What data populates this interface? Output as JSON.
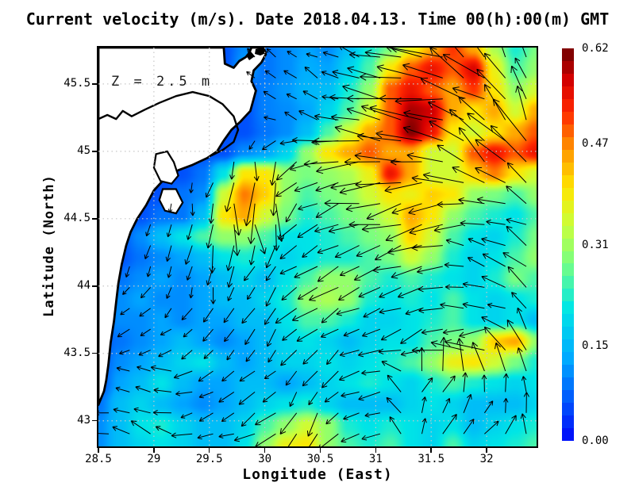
{
  "title": "Current velocity (m/s). Date 2018.04.13. Time 00(h):00(m) GMT",
  "annotation": "Z = 2.5 m",
  "axes": {
    "xlabel": "Longitude (East)",
    "ylabel": "Latitude (North)",
    "x_range": [
      28.5,
      32.45
    ],
    "y_range": [
      42.81,
      45.77
    ],
    "x_ticks": [
      "28.5",
      "29",
      "29.5",
      "30",
      "30.5",
      "31",
      "31.5",
      "32"
    ],
    "x_tick_values": [
      28.5,
      29,
      29.5,
      30,
      30.5,
      31,
      31.5,
      32
    ],
    "y_ticks": [
      "45.5",
      "45",
      "44.5",
      "44",
      "43.5",
      "43"
    ],
    "y_tick_values": [
      45.5,
      45,
      44.5,
      44,
      43.5,
      43
    ],
    "grid_on": true
  },
  "colorbar": {
    "min": 0.0,
    "max": 0.62,
    "steps": 31,
    "tick_labels": [
      "0.62",
      "0.47",
      "0.31",
      "0.15",
      "0.00"
    ],
    "tick_values": [
      0.62,
      0.47,
      0.31,
      0.15,
      0.0
    ]
  },
  "colors": {
    "background": "#ffffff",
    "coast_line": "#000000",
    "land_fill": "#ffffff",
    "gridline": "#c8c8c8",
    "arrow": "#000000",
    "jet_stops": [
      [
        0.0,
        0,
        20,
        250
      ],
      [
        0.2,
        0,
        170,
        255
      ],
      [
        0.33,
        0,
        230,
        230
      ],
      [
        0.45,
        120,
        255,
        130
      ],
      [
        0.55,
        200,
        255,
        60
      ],
      [
        0.65,
        255,
        230,
        0
      ],
      [
        0.75,
        255,
        150,
        0
      ],
      [
        0.85,
        255,
        40,
        0
      ],
      [
        0.93,
        215,
        0,
        0
      ],
      [
        1.0,
        130,
        0,
        0
      ]
    ]
  },
  "chart_data": {
    "type": "heatmap",
    "quantity": "current speed (m/s)",
    "depth_m": 2.5,
    "date": "2018.04.13",
    "time_gmt": "00:00",
    "lon_range": [
      28.5,
      32.45
    ],
    "lat_range": [
      42.81,
      45.77
    ],
    "speed_range": [
      0.0,
      0.62
    ],
    "grid_cols": 22,
    "grid_rows": 20,
    "speed": [
      [
        0.05,
        0.05,
        0.05,
        0.05,
        0.05,
        0.05,
        0.05,
        0.1,
        0.08,
        0.1,
        0.12,
        0.1,
        0.15,
        0.22,
        0.28,
        0.38,
        0.45,
        0.52,
        0.45,
        0.32,
        0.22,
        0.28
      ],
      [
        0.05,
        0.05,
        0.05,
        0.05,
        0.05,
        0.05,
        0.05,
        0.12,
        0.08,
        0.1,
        0.13,
        0.12,
        0.18,
        0.25,
        0.4,
        0.5,
        0.55,
        0.5,
        0.57,
        0.38,
        0.25,
        0.3
      ],
      [
        0.05,
        0.05,
        0.05,
        0.05,
        0.05,
        0.05,
        0.05,
        0.05,
        0.09,
        0.11,
        0.14,
        0.15,
        0.22,
        0.3,
        0.5,
        0.55,
        0.5,
        0.45,
        0.52,
        0.4,
        0.3,
        0.35
      ],
      [
        0.05,
        0.05,
        0.05,
        0.05,
        0.05,
        0.05,
        0.05,
        0.05,
        0.09,
        0.1,
        0.12,
        0.18,
        0.25,
        0.35,
        0.5,
        0.6,
        0.58,
        0.45,
        0.4,
        0.45,
        0.35,
        0.45
      ],
      [
        0.05,
        0.05,
        0.05,
        0.05,
        0.05,
        0.05,
        0.05,
        0.05,
        0.08,
        0.1,
        0.15,
        0.25,
        0.35,
        0.45,
        0.5,
        0.62,
        0.55,
        0.4,
        0.35,
        0.4,
        0.45,
        0.5
      ],
      [
        0.05,
        0.05,
        0.05,
        0.05,
        0.05,
        0.05,
        0.05,
        0.1,
        0.12,
        0.18,
        0.3,
        0.4,
        0.45,
        0.5,
        0.45,
        0.45,
        0.35,
        0.35,
        0.5,
        0.55,
        0.5,
        0.55
      ],
      [
        0.05,
        0.05,
        0.05,
        0.05,
        0.05,
        0.08,
        0.2,
        0.4,
        0.4,
        0.3,
        0.28,
        0.3,
        0.32,
        0.38,
        0.55,
        0.45,
        0.35,
        0.35,
        0.42,
        0.48,
        0.4,
        0.35
      ],
      [
        0.05,
        0.05,
        0.05,
        0.05,
        0.08,
        0.1,
        0.35,
        0.48,
        0.42,
        0.3,
        0.25,
        0.28,
        0.3,
        0.35,
        0.4,
        0.38,
        0.42,
        0.4,
        0.3,
        0.28,
        0.25,
        0.3
      ],
      [
        0.05,
        0.05,
        0.05,
        0.08,
        0.08,
        0.15,
        0.4,
        0.45,
        0.35,
        0.28,
        0.22,
        0.25,
        0.28,
        0.3,
        0.35,
        0.45,
        0.4,
        0.3,
        0.25,
        0.22,
        0.2,
        0.25
      ],
      [
        0.05,
        0.05,
        0.1,
        0.15,
        0.2,
        0.25,
        0.3,
        0.3,
        0.25,
        0.2,
        0.2,
        0.22,
        0.25,
        0.28,
        0.3,
        0.42,
        0.35,
        0.25,
        0.2,
        0.18,
        0.22,
        0.28
      ],
      [
        0.05,
        0.05,
        0.08,
        0.1,
        0.12,
        0.15,
        0.2,
        0.22,
        0.2,
        0.18,
        0.2,
        0.22,
        0.22,
        0.25,
        0.28,
        0.35,
        0.3,
        0.22,
        0.18,
        0.2,
        0.25,
        0.3
      ],
      [
        0.05,
        0.08,
        0.1,
        0.12,
        0.1,
        0.12,
        0.15,
        0.18,
        0.15,
        0.2,
        0.25,
        0.3,
        0.3,
        0.25,
        0.22,
        0.25,
        0.22,
        0.2,
        0.18,
        0.22,
        0.28,
        0.25
      ],
      [
        0.05,
        0.1,
        0.12,
        0.1,
        0.1,
        0.12,
        0.15,
        0.15,
        0.18,
        0.22,
        0.3,
        0.32,
        0.3,
        0.22,
        0.2,
        0.22,
        0.2,
        0.25,
        0.2,
        0.18,
        0.2,
        0.22
      ],
      [
        0.05,
        0.1,
        0.1,
        0.12,
        0.1,
        0.12,
        0.12,
        0.15,
        0.15,
        0.2,
        0.25,
        0.25,
        0.22,
        0.18,
        0.18,
        0.2,
        0.22,
        0.25,
        0.2,
        0.18,
        0.2,
        0.15
      ],
      [
        0.05,
        0.08,
        0.1,
        0.12,
        0.15,
        0.12,
        0.1,
        0.12,
        0.15,
        0.18,
        0.2,
        0.18,
        0.15,
        0.18,
        0.2,
        0.2,
        0.25,
        0.28,
        0.3,
        0.42,
        0.45,
        0.3
      ],
      [
        0.05,
        0.1,
        0.12,
        0.15,
        0.18,
        0.2,
        0.15,
        0.12,
        0.15,
        0.18,
        0.18,
        0.2,
        0.18,
        0.2,
        0.22,
        0.25,
        0.3,
        0.38,
        0.4,
        0.35,
        0.28,
        0.22
      ],
      [
        0.05,
        0.12,
        0.15,
        0.2,
        0.15,
        0.12,
        0.12,
        0.15,
        0.15,
        0.12,
        0.15,
        0.18,
        0.2,
        0.22,
        0.2,
        0.18,
        0.22,
        0.25,
        0.22,
        0.2,
        0.18,
        0.2
      ],
      [
        0.08,
        0.15,
        0.18,
        0.15,
        0.12,
        0.1,
        0.12,
        0.15,
        0.18,
        0.2,
        0.22,
        0.18,
        0.15,
        0.15,
        0.15,
        0.18,
        0.2,
        0.18,
        0.15,
        0.15,
        0.15,
        0.18
      ],
      [
        0.1,
        0.15,
        0.2,
        0.22,
        0.18,
        0.15,
        0.15,
        0.18,
        0.25,
        0.3,
        0.35,
        0.3,
        0.22,
        0.2,
        0.22,
        0.2,
        0.18,
        0.2,
        0.15,
        0.18,
        0.2,
        0.22
      ],
      [
        0.1,
        0.15,
        0.18,
        0.2,
        0.18,
        0.15,
        0.15,
        0.2,
        0.3,
        0.38,
        0.4,
        0.3,
        0.25,
        0.22,
        0.25,
        0.2,
        0.18,
        0.25,
        0.18,
        0.2,
        0.22,
        0.25
      ]
    ],
    "land": [
      [
        1,
        1,
        1,
        1,
        1,
        1,
        1,
        0,
        0,
        0,
        0,
        0,
        0,
        0,
        0,
        0,
        0,
        0,
        0,
        0,
        0,
        0
      ],
      [
        1,
        1,
        1,
        1,
        1,
        1,
        1,
        0,
        0,
        0,
        0,
        0,
        0,
        0,
        0,
        0,
        0,
        0,
        0,
        0,
        0,
        0
      ],
      [
        1,
        1,
        1,
        1,
        1,
        1,
        1,
        1,
        0,
        0,
        0,
        0,
        0,
        0,
        0,
        0,
        0,
        0,
        0,
        0,
        0,
        0
      ],
      [
        1,
        1,
        1,
        1,
        1,
        1,
        1,
        1,
        0,
        0,
        0,
        0,
        0,
        0,
        0,
        0,
        0,
        0,
        0,
        0,
        0,
        0
      ],
      [
        1,
        1,
        1,
        1,
        1,
        1,
        1,
        1,
        0,
        0,
        0,
        0,
        0,
        0,
        0,
        0,
        0,
        0,
        0,
        0,
        0,
        0
      ],
      [
        1,
        1,
        1,
        1,
        1,
        1,
        1,
        0,
        0,
        0,
        0,
        0,
        0,
        0,
        0,
        0,
        0,
        0,
        0,
        0,
        0,
        0
      ],
      [
        1,
        1,
        1,
        1,
        1,
        0,
        0,
        0,
        0,
        0,
        0,
        0,
        0,
        0,
        0,
        0,
        0,
        0,
        0,
        0,
        0,
        0
      ],
      [
        1,
        1,
        1,
        1,
        0,
        0,
        0,
        0,
        0,
        0,
        0,
        0,
        0,
        0,
        0,
        0,
        0,
        0,
        0,
        0,
        0,
        0
      ],
      [
        1,
        1,
        1,
        0,
        0,
        0,
        0,
        0,
        0,
        0,
        0,
        0,
        0,
        0,
        0,
        0,
        0,
        0,
        0,
        0,
        0,
        0
      ],
      [
        1,
        1,
        0,
        0,
        0,
        0,
        0,
        0,
        0,
        0,
        0,
        0,
        0,
        0,
        0,
        0,
        0,
        0,
        0,
        0,
        0,
        0
      ],
      [
        1,
        1,
        0,
        0,
        0,
        0,
        0,
        0,
        0,
        0,
        0,
        0,
        0,
        0,
        0,
        0,
        0,
        0,
        0,
        0,
        0,
        0
      ],
      [
        1,
        0,
        0,
        0,
        0,
        0,
        0,
        0,
        0,
        0,
        0,
        0,
        0,
        0,
        0,
        0,
        0,
        0,
        0,
        0,
        0,
        0
      ],
      [
        1,
        0,
        0,
        0,
        0,
        0,
        0,
        0,
        0,
        0,
        0,
        0,
        0,
        0,
        0,
        0,
        0,
        0,
        0,
        0,
        0,
        0
      ],
      [
        1,
        0,
        0,
        0,
        0,
        0,
        0,
        0,
        0,
        0,
        0,
        0,
        0,
        0,
        0,
        0,
        0,
        0,
        0,
        0,
        0,
        0
      ],
      [
        1,
        0,
        0,
        0,
        0,
        0,
        0,
        0,
        0,
        0,
        0,
        0,
        0,
        0,
        0,
        0,
        0,
        0,
        0,
        0,
        0,
        0
      ],
      [
        1,
        0,
        0,
        0,
        0,
        0,
        0,
        0,
        0,
        0,
        0,
        0,
        0,
        0,
        0,
        0,
        0,
        0,
        0,
        0,
        0,
        0
      ],
      [
        1,
        0,
        0,
        0,
        0,
        0,
        0,
        0,
        0,
        0,
        0,
        0,
        0,
        0,
        0,
        0,
        0,
        0,
        0,
        0,
        0,
        0
      ],
      [
        1,
        0,
        0,
        0,
        0,
        0,
        0,
        0,
        0,
        0,
        0,
        0,
        0,
        0,
        0,
        0,
        0,
        0,
        0,
        0,
        0,
        0
      ],
      [
        0,
        0,
        0,
        0,
        0,
        0,
        0,
        0,
        0,
        0,
        0,
        0,
        0,
        0,
        0,
        0,
        0,
        0,
        0,
        0,
        0,
        0
      ],
      [
        0,
        0,
        0,
        0,
        0,
        0,
        0,
        0,
        0,
        0,
        0,
        0,
        0,
        0,
        0,
        0,
        0,
        0,
        0,
        0,
        0,
        0
      ]
    ],
    "direction_deg": {
      "cols": 9,
      "rows": 8,
      "note": "flow direction, degrees CCW from east",
      "values": [
        [
          140,
          140,
          140,
          140,
          150,
          160,
          165,
          120,
          100
        ],
        [
          140,
          140,
          140,
          145,
          155,
          170,
          175,
          150,
          110
        ],
        [
          200,
          230,
          250,
          265,
          185,
          180,
          175,
          140,
          120
        ],
        [
          250,
          260,
          270,
          280,
          210,
          190,
          200,
          170,
          150
        ],
        [
          250,
          240,
          260,
          230,
          210,
          200,
          190,
          160,
          140
        ],
        [
          220,
          200,
          230,
          250,
          220,
          210,
          200,
          190,
          120
        ],
        [
          180,
          160,
          200,
          220,
          240,
          190,
          60,
          80,
          100
        ],
        [
          170,
          150,
          190,
          210,
          230,
          200,
          70,
          50,
          90
        ]
      ]
    },
    "arrow_grid": {
      "x0": 13,
      "y0": 12,
      "dx": 26.3,
      "dy": 26.4,
      "cols": 21,
      "rows": 19
    },
    "map_overlay": {
      "coast_polygon": [
        [
          0,
          0
        ],
        [
          157.9,
          0
        ],
        [
          159.3,
          20.4
        ],
        [
          170.4,
          25.5
        ],
        [
          177.4,
          17
        ],
        [
          185.8,
          11.9
        ],
        [
          190,
          6.8
        ],
        [
          192.8,
          0
        ],
        [
          208.2,
          0
        ],
        [
          210.9,
          8.5
        ],
        [
          205.4,
          18.7
        ],
        [
          195.6,
          28.9
        ],
        [
          192.8,
          42.5
        ],
        [
          198.4,
          54.4
        ],
        [
          194.2,
          69.7
        ],
        [
          191.4,
          79.9
        ],
        [
          178.8,
          93.5
        ],
        [
          167.6,
          103.7
        ],
        [
          157.9,
          117.3
        ],
        [
          149.5,
          130.9
        ],
        [
          136.9,
          139.4
        ],
        [
          118.7,
          147.9
        ],
        [
          100.6,
          154.7
        ],
        [
          83.8,
          164.9
        ],
        [
          69.9,
          180.2
        ],
        [
          60.1,
          198.9
        ],
        [
          48.9,
          215.9
        ],
        [
          40.5,
          232.9
        ],
        [
          34.9,
          249.9
        ],
        [
          29.3,
          273.7
        ],
        [
          25.1,
          297.5
        ],
        [
          22.3,
          321.3
        ],
        [
          19.6,
          345.1
        ],
        [
          15.4,
          372.3
        ],
        [
          12.6,
          399.5
        ],
        [
          9.8,
          419.9
        ],
        [
          7,
          433.5
        ],
        [
          0,
          450.5
        ]
      ],
      "river_line": [
        [
          0,
          90.1
        ],
        [
          11.2,
          85
        ],
        [
          22.3,
          90.1
        ],
        [
          30.7,
          79.9
        ],
        [
          41.9,
          86.7
        ],
        [
          58.7,
          78.2
        ],
        [
          76.8,
          69.7
        ],
        [
          97.8,
          61.2
        ],
        [
          118.7,
          56.1
        ],
        [
          139.7,
          61.2
        ],
        [
          156.5,
          71.4
        ],
        [
          170.4,
          86.7
        ],
        [
          176,
          103.7
        ],
        [
          170.4,
          119
        ],
        [
          156.5,
          129.2
        ],
        [
          142.5,
          136
        ]
      ],
      "lagoons": [
        [
          [
            72.6,
            134.3
          ],
          [
            86.6,
            130.9
          ],
          [
            95,
            144.5
          ],
          [
            100.6,
            161.5
          ],
          [
            92.2,
            171.7
          ],
          [
            78.2,
            168.3
          ],
          [
            69.9,
            151.3
          ]
        ],
        [
          [
            81,
            178.5
          ],
          [
            97.8,
            178.5
          ],
          [
            106.2,
            195.5
          ],
          [
            97.8,
            209.1
          ],
          [
            83.8,
            205.7
          ],
          [
            76.8,
            192.1
          ]
        ]
      ],
      "islands": [
        [
          [
            186,
            10
          ],
          [
            192,
            5
          ],
          [
            197,
            11
          ],
          [
            190,
            16
          ]
        ],
        [
          [
            198,
            2
          ],
          [
            207,
            0
          ],
          [
            213,
            6
          ],
          [
            204,
            10
          ],
          [
            197,
            8
          ]
        ]
      ]
    }
  }
}
